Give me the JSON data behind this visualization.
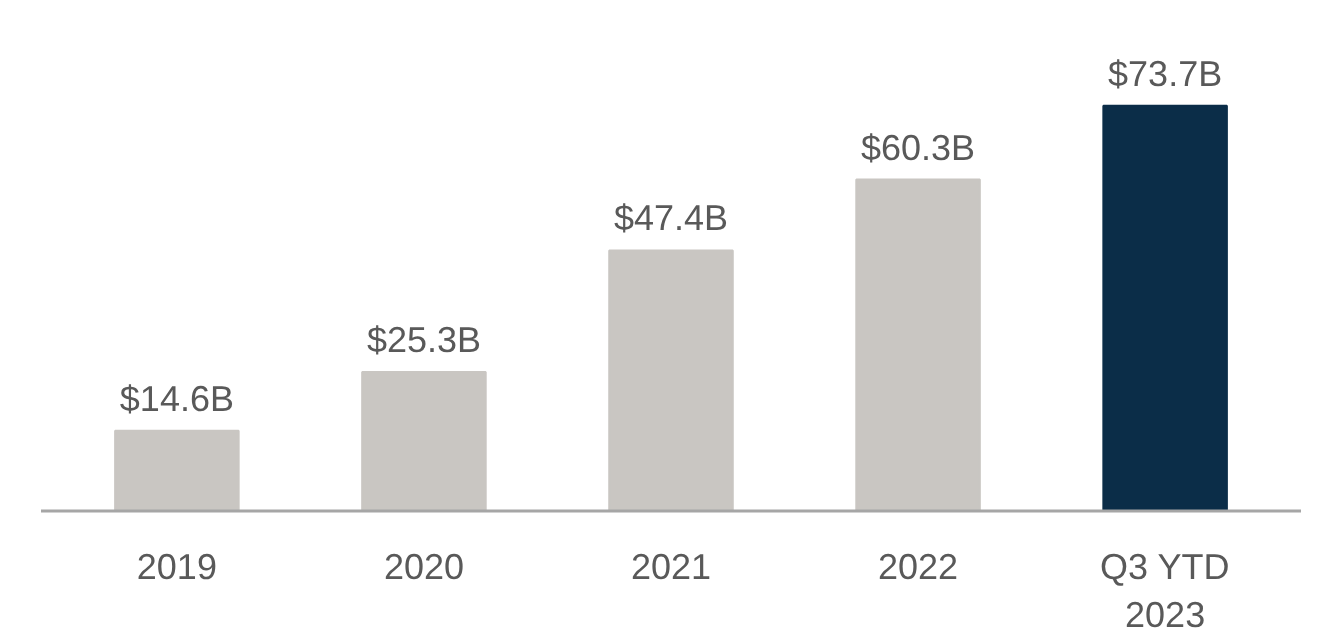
{
  "chart_data": {
    "type": "bar",
    "categories": [
      "2019",
      "2020",
      "2021",
      "2022",
      "Q3 YTD\n2023"
    ],
    "values": [
      14.6,
      25.3,
      47.4,
      60.3,
      73.7
    ],
    "value_labels": [
      "$14.6B",
      "$25.3B",
      "$47.4B",
      "$60.3B",
      "$73.7B"
    ],
    "colors": [
      "#c9c6c2",
      "#c9c6c2",
      "#c9c6c2",
      "#c9c6c2",
      "#0b2d48"
    ],
    "grid": false
  }
}
